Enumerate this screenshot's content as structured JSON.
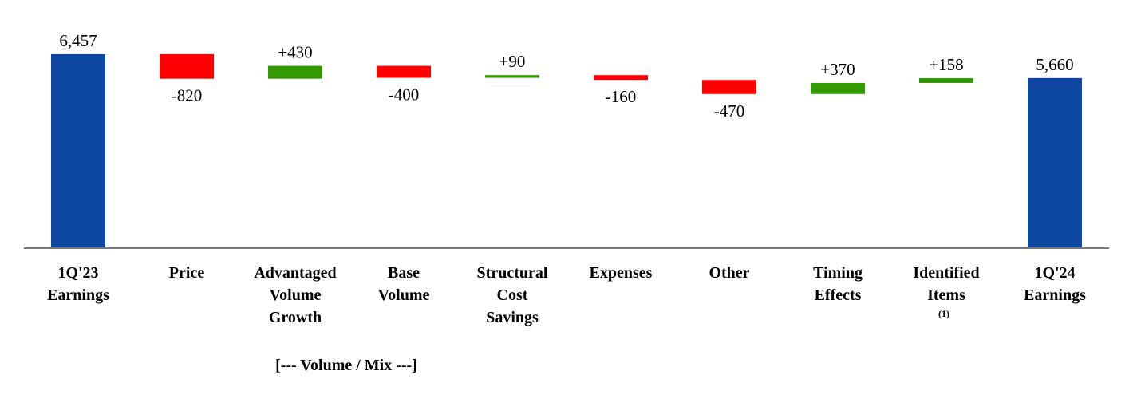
{
  "chart_data": {
    "type": "waterfall",
    "categories": [
      "1Q'23\nEarnings",
      "Price",
      "Advantaged\nVolume\nGrowth",
      "Base\nVolume",
      "Structural\nCost\nSavings",
      "Expenses",
      "Other",
      "Timing\nEffects",
      "Identified\nItems",
      "1Q'24\nEarnings"
    ],
    "values": [
      6457,
      -820,
      430,
      -400,
      90,
      -160,
      -470,
      370,
      158,
      5660
    ],
    "value_labels": [
      "6,457",
      "-820",
      "+430",
      "-400",
      "+90",
      "-160",
      "-470",
      "+370",
      "+158",
      "5,660"
    ],
    "measures": [
      "total",
      "relative",
      "relative",
      "relative",
      "relative",
      "relative",
      "relative",
      "relative",
      "relative",
      "total"
    ],
    "colors": {
      "total": "#0d47a1",
      "increase": "#339900",
      "decrease": "#ff0000"
    },
    "ylim": [
      0,
      7000
    ],
    "annotations": [
      "(1)",
      "[--- Volume / Mix ---]"
    ]
  }
}
